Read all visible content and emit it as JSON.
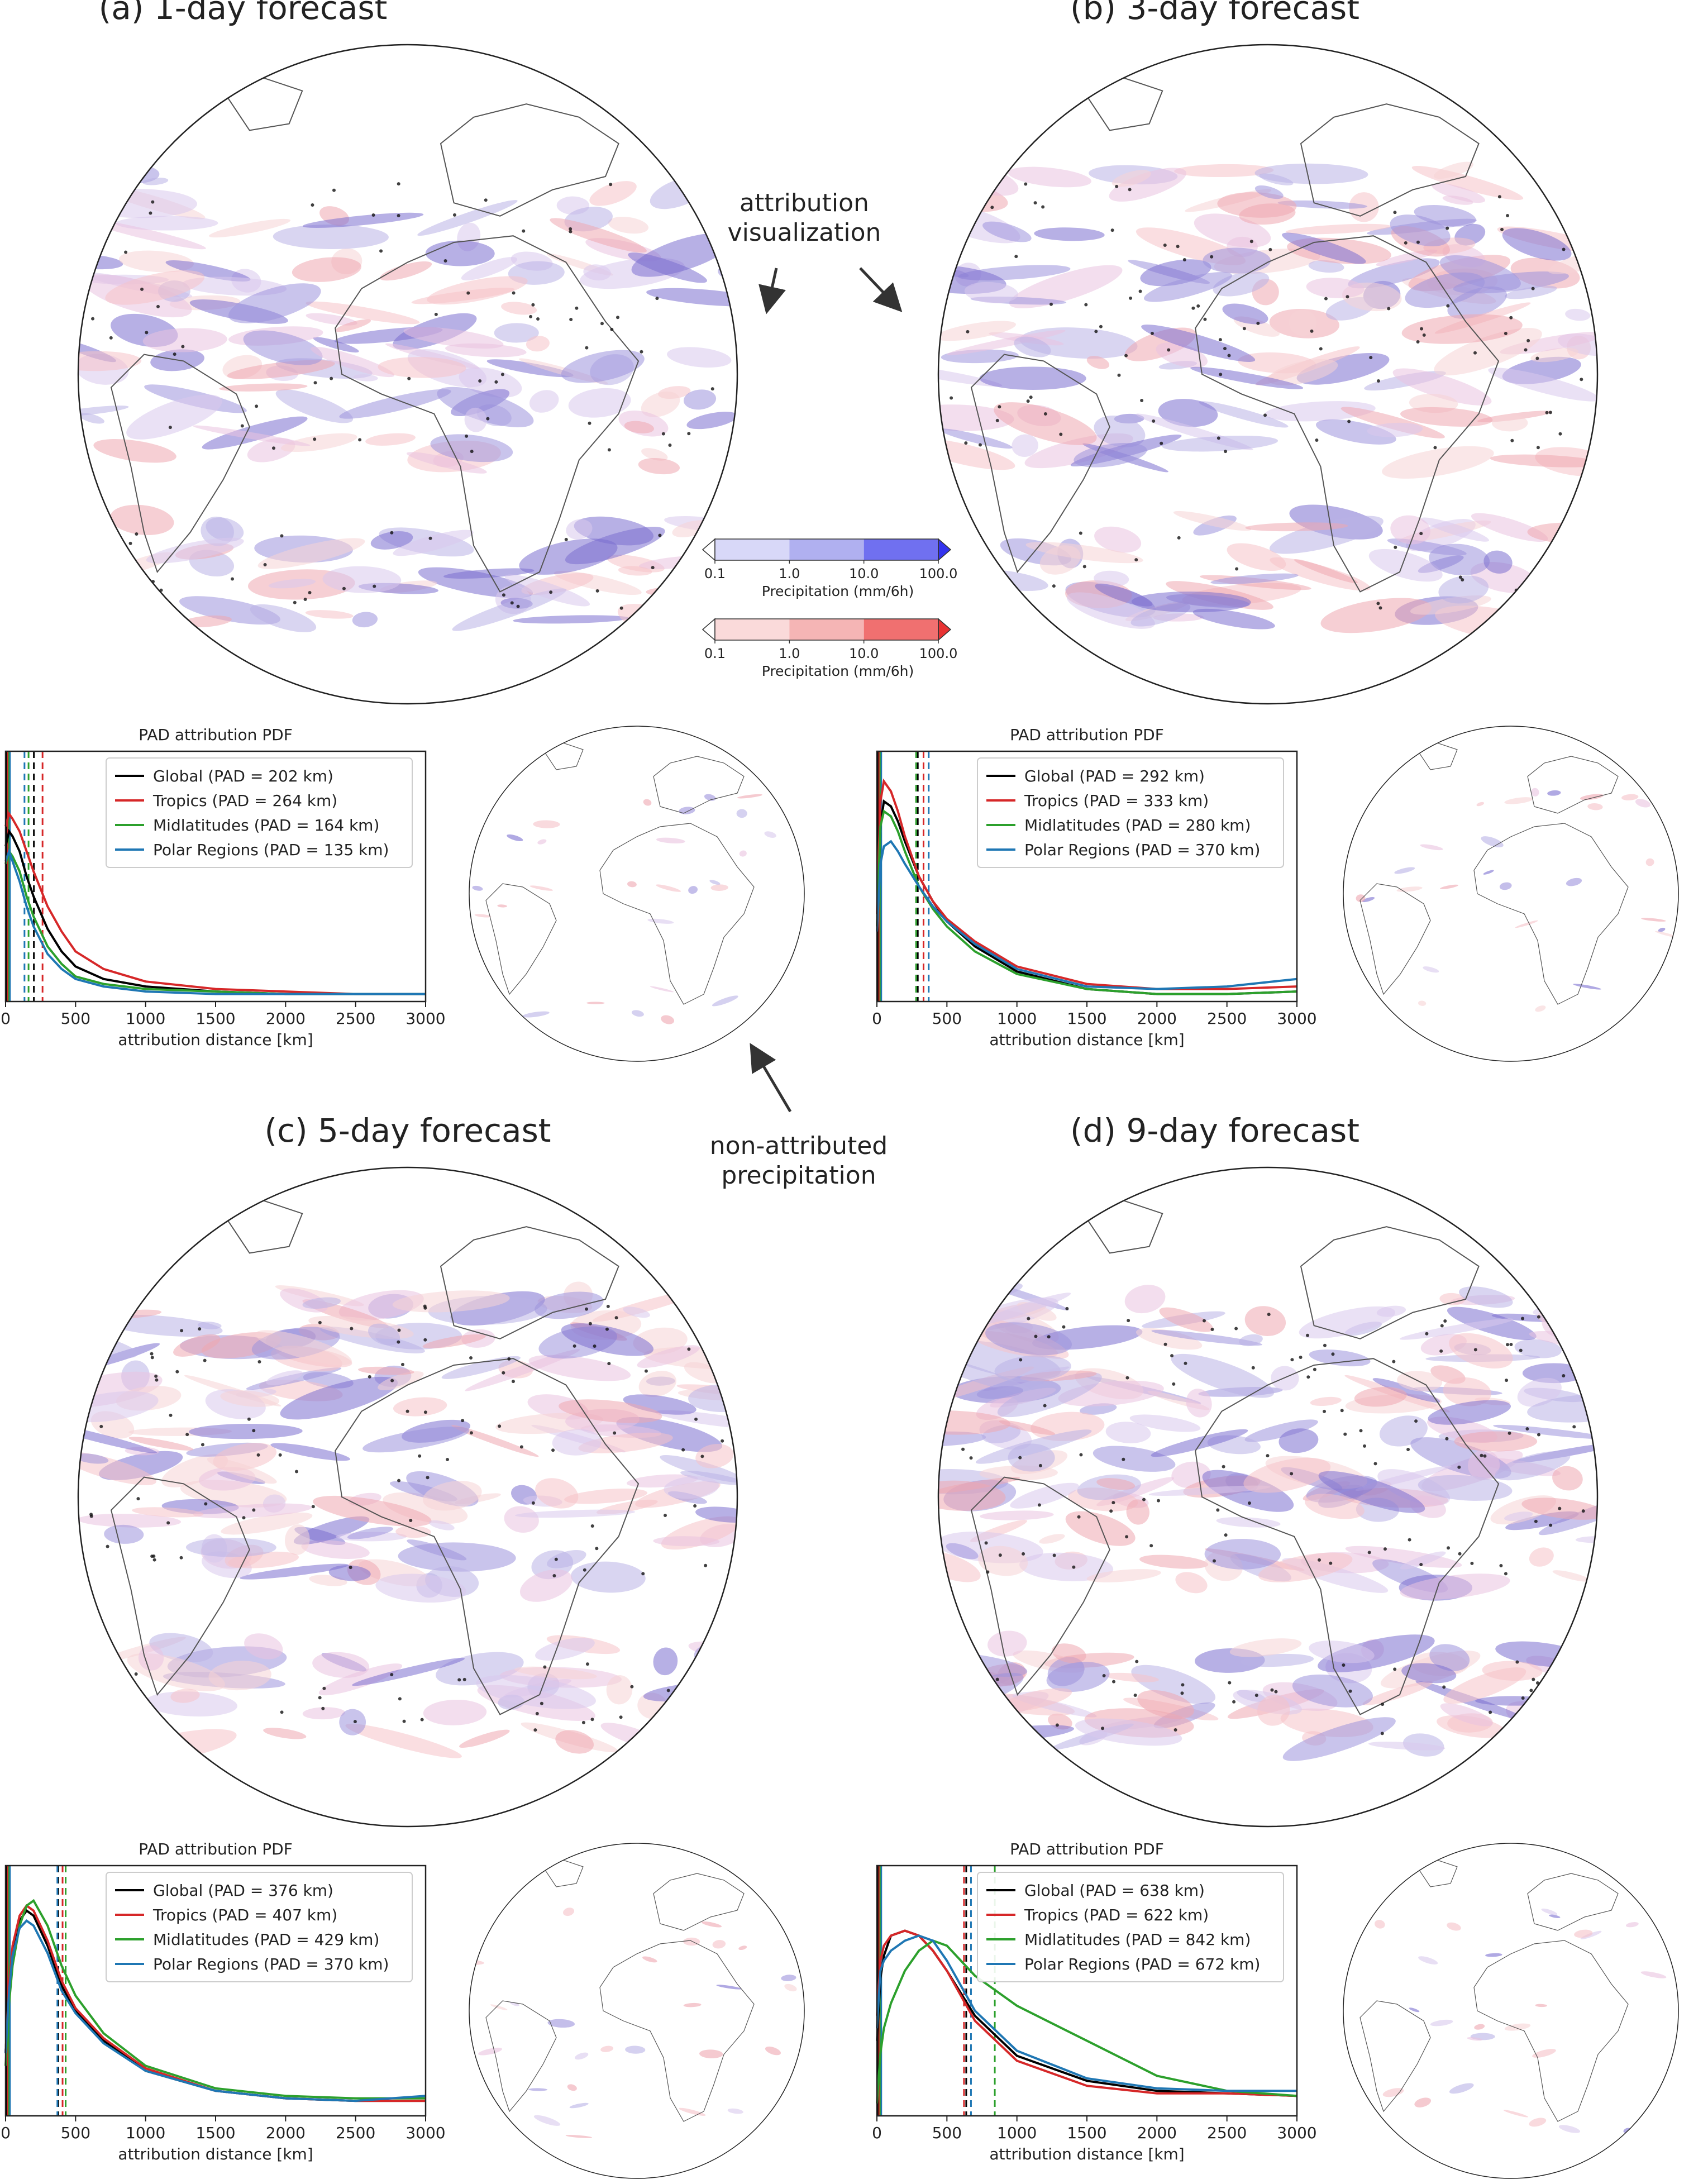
{
  "panels": [
    {
      "title": "(a) 1-day forecast"
    },
    {
      "title": "(b) 3-day forecast"
    },
    {
      "title": "(c) 5-day forecast"
    },
    {
      "title": "(d) 9-day forecast"
    }
  ],
  "annotations": {
    "attribution_line1": "attribution",
    "attribution_line2": "visualization",
    "nonattr_line1": "non-attributed",
    "nonattr_line2": "precipitation"
  },
  "colorbars": [
    {
      "color_family": "blue",
      "ticks": [
        "0.1",
        "1.0",
        "10.0",
        "100.0"
      ],
      "label": "Precipitation (mm/6h)",
      "colors": [
        "#d8d8f8",
        "#b0b0f0",
        "#7070f0",
        "#3333ee"
      ]
    },
    {
      "color_family": "red",
      "ticks": [
        "0.1",
        "1.0",
        "10.0",
        "100.0"
      ],
      "label": "Precipitation (mm/6h)",
      "colors": [
        "#fadada",
        "#f5b5b5",
        "#f07070",
        "#e83333"
      ]
    }
  ],
  "series_colors": {
    "Global": "#000000",
    "Tropics": "#d62728",
    "Midlatitudes": "#2ca02c",
    "Polar Regions": "#1f77b4"
  },
  "chart_data": [
    {
      "type": "line",
      "title": "PAD attribution PDF",
      "xlabel": "attribution distance [km]",
      "xlim": [
        0,
        3000
      ],
      "xticks": [
        "0",
        "500",
        "1000",
        "1500",
        "2000",
        "2500",
        "3000"
      ],
      "legend_position": "upper-right",
      "x": [
        0,
        25,
        50,
        100,
        150,
        200,
        300,
        400,
        500,
        700,
        1000,
        1500,
        2000,
        2500,
        3000
      ],
      "series": [
        {
          "name": "Global (PAD = 202 km)",
          "key": "Global",
          "pad": 202,
          "values": [
            0.62,
            0.68,
            0.66,
            0.6,
            0.5,
            0.42,
            0.29,
            0.2,
            0.14,
            0.09,
            0.06,
            0.04,
            0.03,
            0.03,
            0.03
          ]
        },
        {
          "name": "Tropics (PAD = 264 km)",
          "key": "Tropics",
          "pad": 264,
          "values": [
            0.7,
            0.75,
            0.73,
            0.68,
            0.6,
            0.52,
            0.38,
            0.28,
            0.2,
            0.13,
            0.08,
            0.05,
            0.04,
            0.03,
            0.03
          ]
        },
        {
          "name": "Midlatitudes (PAD = 164 km)",
          "key": "Midlatitudes",
          "pad": 164,
          "values": [
            0.55,
            0.6,
            0.58,
            0.52,
            0.42,
            0.34,
            0.22,
            0.15,
            0.1,
            0.07,
            0.05,
            0.04,
            0.03,
            0.03,
            0.03
          ]
        },
        {
          "name": "Polar Regions (PAD = 135 km)",
          "key": "Polar Regions",
          "pad": 135,
          "values": [
            0.56,
            0.6,
            0.56,
            0.48,
            0.38,
            0.3,
            0.19,
            0.13,
            0.09,
            0.06,
            0.04,
            0.03,
            0.03,
            0.03,
            0.03
          ]
        }
      ]
    },
    {
      "type": "line",
      "title": "PAD attribution PDF",
      "xlabel": "attribution distance [km]",
      "xlim": [
        0,
        3000
      ],
      "xticks": [
        "0",
        "500",
        "1000",
        "1500",
        "2000",
        "2500",
        "3000"
      ],
      "legend_position": "upper-right",
      "x": [
        0,
        25,
        50,
        100,
        150,
        200,
        300,
        400,
        500,
        700,
        1000,
        1500,
        2000,
        2500,
        3000
      ],
      "series": [
        {
          "name": "Global (PAD = 292 km)",
          "key": "Global",
          "pad": 292,
          "values": [
            0.3,
            0.7,
            0.8,
            0.78,
            0.72,
            0.64,
            0.5,
            0.4,
            0.32,
            0.22,
            0.12,
            0.05,
            0.03,
            0.03,
            0.04
          ]
        },
        {
          "name": "Tropics (PAD = 333 km)",
          "key": "Tropics",
          "pad": 333,
          "values": [
            0.35,
            0.8,
            0.88,
            0.84,
            0.76,
            0.66,
            0.5,
            0.4,
            0.33,
            0.24,
            0.14,
            0.07,
            0.05,
            0.05,
            0.06
          ]
        },
        {
          "name": "Midlatitudes (PAD = 280 km)",
          "key": "Midlatitudes",
          "pad": 280,
          "values": [
            0.3,
            0.7,
            0.76,
            0.74,
            0.68,
            0.6,
            0.46,
            0.37,
            0.3,
            0.2,
            0.11,
            0.05,
            0.03,
            0.03,
            0.04
          ]
        },
        {
          "name": "Polar Regions (PAD = 370 km)",
          "key": "Polar Regions",
          "pad": 370,
          "values": [
            0.28,
            0.55,
            0.62,
            0.64,
            0.6,
            0.55,
            0.46,
            0.38,
            0.32,
            0.23,
            0.13,
            0.06,
            0.05,
            0.06,
            0.09
          ]
        }
      ]
    },
    {
      "type": "line",
      "title": "PAD attribution PDF",
      "xlabel": "attribution distance [km]",
      "xlim": [
        0,
        3000
      ],
      "xticks": [
        "0",
        "500",
        "1000",
        "1500",
        "2000",
        "2500",
        "3000"
      ],
      "legend_position": "upper-right",
      "x": [
        0,
        25,
        50,
        100,
        150,
        200,
        300,
        400,
        500,
        700,
        1000,
        1500,
        2000,
        2500,
        3000
      ],
      "series": [
        {
          "name": "Global (PAD = 376 km)",
          "key": "Global",
          "pad": 376,
          "values": [
            0.25,
            0.5,
            0.65,
            0.78,
            0.82,
            0.8,
            0.68,
            0.52,
            0.42,
            0.3,
            0.18,
            0.1,
            0.07,
            0.06,
            0.06
          ]
        },
        {
          "name": "Tropics (PAD = 407 km)",
          "key": "Tropics",
          "pad": 407,
          "values": [
            0.25,
            0.52,
            0.68,
            0.8,
            0.84,
            0.82,
            0.7,
            0.54,
            0.43,
            0.31,
            0.19,
            0.1,
            0.07,
            0.06,
            0.06
          ]
        },
        {
          "name": "Midlatitudes (PAD = 429 km)",
          "key": "Midlatitudes",
          "pad": 429,
          "values": [
            0.2,
            0.45,
            0.6,
            0.76,
            0.84,
            0.86,
            0.76,
            0.6,
            0.48,
            0.33,
            0.2,
            0.11,
            0.08,
            0.07,
            0.07
          ]
        },
        {
          "name": "Polar Regions (PAD = 370 km)",
          "key": "Polar Regions",
          "pad": 370,
          "values": [
            0.25,
            0.5,
            0.64,
            0.75,
            0.78,
            0.76,
            0.65,
            0.5,
            0.41,
            0.29,
            0.18,
            0.1,
            0.07,
            0.06,
            0.08
          ]
        }
      ]
    },
    {
      "type": "line",
      "title": "PAD attribution PDF",
      "xlabel": "attribution distance [km]",
      "xlim": [
        0,
        3000
      ],
      "xticks": [
        "0",
        "500",
        "1000",
        "1500",
        "2000",
        "2500",
        "3000"
      ],
      "legend_position": "upper-right",
      "x": [
        0,
        25,
        50,
        100,
        200,
        300,
        400,
        500,
        700,
        1000,
        1500,
        2000,
        2500,
        3000
      ],
      "series": [
        {
          "name": "Global (PAD = 638 km)",
          "key": "Global",
          "pad": 638,
          "values": [
            0.3,
            0.55,
            0.64,
            0.72,
            0.74,
            0.72,
            0.66,
            0.58,
            0.4,
            0.24,
            0.14,
            0.1,
            0.09,
            0.08
          ]
        },
        {
          "name": "Tropics (PAD = 622 km)",
          "key": "Tropics",
          "pad": 622,
          "values": [
            0.4,
            0.62,
            0.68,
            0.72,
            0.74,
            0.72,
            0.66,
            0.58,
            0.38,
            0.22,
            0.12,
            0.09,
            0.09,
            0.08
          ]
        },
        {
          "name": "Midlatitudes (PAD = 842 km)",
          "key": "Midlatitudes",
          "pad": 842,
          "values": [
            0.05,
            0.25,
            0.35,
            0.45,
            0.58,
            0.66,
            0.7,
            0.68,
            0.56,
            0.44,
            0.3,
            0.16,
            0.1,
            0.08
          ]
        },
        {
          "name": "Polar Regions (PAD = 672 km)",
          "key": "Polar Regions",
          "pad": 672,
          "values": [
            0.35,
            0.58,
            0.62,
            0.66,
            0.7,
            0.72,
            0.7,
            0.62,
            0.42,
            0.26,
            0.15,
            0.11,
            0.1,
            0.1
          ]
        }
      ]
    }
  ]
}
